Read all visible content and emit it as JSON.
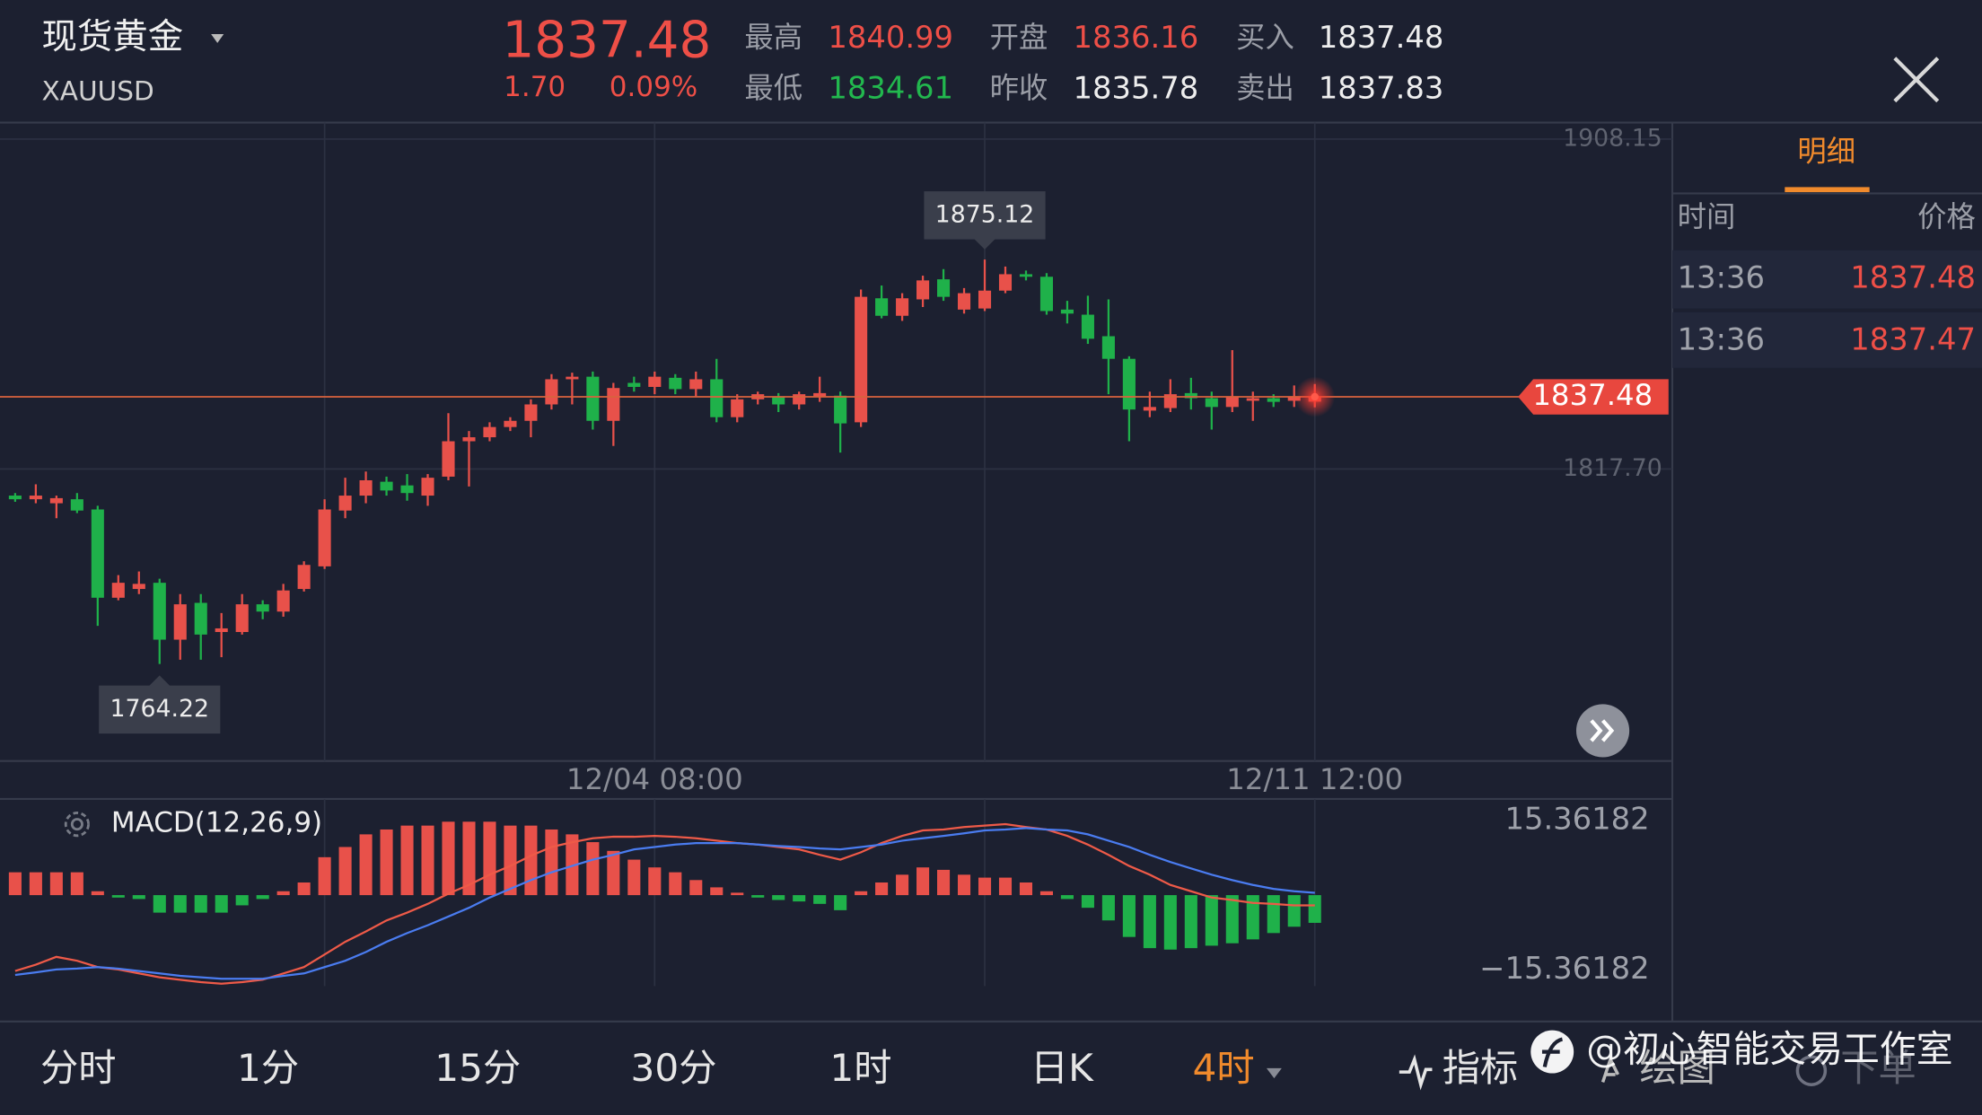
{
  "header": {
    "name": "现货黄金",
    "symbol": "XAUUSD",
    "price": "1837.48",
    "change": "1.70",
    "change_pct": "0.09%",
    "stats": [
      {
        "label": "最高",
        "value": "1840.99"
      },
      {
        "label": "最低",
        "value": "1834.61"
      },
      {
        "label": "开盘",
        "value": "1836.16"
      },
      {
        "label": "昨收",
        "value": "1835.78"
      },
      {
        "label": "买入",
        "value": "1837.48"
      },
      {
        "label": "卖出",
        "value": "1837.83"
      }
    ]
  },
  "chart_data": [
    {
      "type": "candlestick",
      "categories": [
        null,
        null,
        null,
        null,
        null,
        null,
        null,
        null,
        null,
        null,
        null,
        null,
        null,
        null,
        null,
        null,
        null,
        null,
        null,
        null,
        null,
        null,
        null,
        null,
        null,
        null,
        null,
        null,
        null,
        null,
        null,
        "12/04 08:00",
        null,
        null,
        null,
        null,
        null,
        null,
        null,
        null,
        null,
        null,
        null,
        null,
        null,
        null,
        null,
        null,
        null,
        null,
        null,
        null,
        null,
        null,
        null,
        null,
        null,
        null,
        null,
        null,
        null,
        null,
        null,
        "12/11 12:00"
      ],
      "open": [
        1810.4,
        1809.4,
        1808.3,
        1809.4,
        1806.6,
        1782.4,
        1784.8,
        1786.5,
        1770.9,
        1781.0,
        1773.0,
        1773.0,
        1780.6,
        1778.6,
        1784.8,
        1791.0,
        1806.3,
        1810.4,
        1814.2,
        1813.2,
        1810.4,
        1815.6,
        1825.3,
        1826.4,
        1829.2,
        1830.9,
        1835.4,
        1842.3,
        1843.0,
        1830.9,
        1841.3,
        1840.2,
        1842.7,
        1839.6,
        1842.3,
        1831.9,
        1836.8,
        1837.5,
        1835.4,
        1837.5,
        1837.8,
        1830.5,
        1864.5,
        1859.7,
        1864.2,
        1869.7,
        1861.4,
        1861.7,
        1866.6,
        1871.1,
        1870.4,
        1861.4,
        1860.0,
        1854.1,
        1847.9,
        1833.7,
        1834.4,
        1838.5,
        1837.1,
        1834.7,
        1836.4,
        1837.1,
        1836.4,
        1836.16
      ],
      "high": [
        1811.1,
        1813.5,
        1810.4,
        1811.1,
        1807.6,
        1788.6,
        1789.6,
        1787.6,
        1783.4,
        1783.4,
        1778.2,
        1783.4,
        1781.7,
        1786.2,
        1792.4,
        1809.4,
        1815.3,
        1817.0,
        1815.6,
        1816.3,
        1816.3,
        1833.0,
        1828.1,
        1830.5,
        1831.9,
        1836.8,
        1843.7,
        1844.1,
        1844.4,
        1841.3,
        1843.0,
        1844.4,
        1843.7,
        1844.4,
        1847.9,
        1838.2,
        1838.9,
        1838.5,
        1838.9,
        1843.0,
        1838.9,
        1866.9,
        1868.0,
        1865.9,
        1870.7,
        1872.5,
        1867.3,
        1875.12,
        1873.2,
        1872.1,
        1871.4,
        1863.8,
        1865.2,
        1864.2,
        1848.6,
        1838.9,
        1842.3,
        1842.7,
        1838.9,
        1850.3,
        1838.9,
        1838.2,
        1840.6,
        1840.99
      ],
      "low": [
        1808.7,
        1808.3,
        1804.2,
        1805.6,
        1774.7,
        1781.7,
        1783.4,
        1764.22,
        1765.4,
        1765.4,
        1766.1,
        1772.3,
        1776.5,
        1777.2,
        1784.1,
        1790.3,
        1804.2,
        1808.3,
        1810.4,
        1809.0,
        1807.6,
        1814.6,
        1812.9,
        1825.3,
        1828.1,
        1826.4,
        1834.0,
        1835.4,
        1828.5,
        1824.0,
        1838.9,
        1838.2,
        1838.2,
        1837.5,
        1830.5,
        1830.5,
        1835.4,
        1833.3,
        1834.0,
        1836.1,
        1822.2,
        1829.2,
        1859.0,
        1858.3,
        1862.1,
        1863.8,
        1860.3,
        1861.0,
        1865.9,
        1869.4,
        1860.0,
        1857.6,
        1852.0,
        1838.2,
        1825.3,
        1831.9,
        1833.3,
        1834.0,
        1828.5,
        1833.3,
        1830.9,
        1834.7,
        1834.7,
        1834.61
      ],
      "close": [
        1809.4,
        1810.4,
        1809.7,
        1806.3,
        1782.4,
        1786.5,
        1786.2,
        1770.9,
        1780.6,
        1772.3,
        1774.0,
        1780.6,
        1778.6,
        1784.4,
        1791.4,
        1806.6,
        1810.4,
        1814.6,
        1811.8,
        1811.1,
        1815.3,
        1825.3,
        1826.4,
        1829.2,
        1830.9,
        1835.4,
        1842.3,
        1843.0,
        1830.9,
        1839.9,
        1840.2,
        1843.0,
        1839.6,
        1842.3,
        1831.9,
        1836.8,
        1838.2,
        1835.4,
        1838.2,
        1838.5,
        1830.2,
        1864.9,
        1859.7,
        1864.5,
        1869.4,
        1864.9,
        1865.9,
        1866.6,
        1871.1,
        1870.4,
        1861.0,
        1860.3,
        1853.4,
        1847.9,
        1834.0,
        1834.7,
        1838.2,
        1837.1,
        1834.7,
        1837.5,
        1837.1,
        1836.1,
        1837.5,
        1837.48
      ],
      "up_color": "#e8514a",
      "down_color": "#1fb14a",
      "price_line_color": "#d9623e",
      "ylim": [
        1738.32,
        1911.62
      ],
      "yticks": [
        1908.15,
        {
          "value": 1817.7,
          "label": "1817.70"
        }
      ],
      "grid": true
    },
    {
      "type": "macd",
      "title": "MACD(12,26,9)",
      "histogram": [
        4.7,
        4.7,
        4.7,
        4.7,
        0.8,
        -0.5,
        -0.8,
        -3.6,
        -3.6,
        -3.6,
        -3.6,
        -2.1,
        -0.8,
        0.8,
        2.6,
        7.8,
        9.9,
        12.5,
        13.5,
        14.3,
        14.3,
        15.1,
        15.1,
        15.1,
        14.3,
        14.3,
        13.5,
        12.5,
        10.9,
        9.1,
        7.3,
        5.7,
        4.7,
        3.1,
        1.6,
        0.5,
        -0.5,
        -1.0,
        -1.3,
        -1.8,
        -3.1,
        0.8,
        2.6,
        4.2,
        5.7,
        5.2,
        4.2,
        3.6,
        3.6,
        2.6,
        0.8,
        -0.8,
        -2.6,
        -5.2,
        -8.6,
        -10.9,
        -11.2,
        -10.9,
        -10.4,
        -9.9,
        -9.1,
        -7.8,
        -6.5,
        -5.7
      ],
      "series": [
        {
          "color": "#ee5a48",
          "values": [
            -15.6,
            -14.3,
            -12.7,
            -13.5,
            -14.8,
            -15.3,
            -16.1,
            -16.9,
            -17.4,
            -17.9,
            -18.2,
            -17.9,
            -17.4,
            -16.1,
            -14.8,
            -12.2,
            -9.6,
            -7.5,
            -5.2,
            -3.6,
            -1.8,
            0.3,
            2.1,
            4.2,
            6.0,
            8.1,
            9.9,
            10.9,
            11.7,
            12.0,
            12.0,
            12.2,
            12.0,
            11.7,
            11.2,
            10.7,
            10.4,
            9.9,
            9.4,
            8.3,
            7.3,
            8.8,
            10.7,
            12.2,
            13.3,
            13.5,
            14.0,
            14.3,
            14.6,
            14.0,
            13.5,
            12.2,
            10.4,
            8.3,
            6.0,
            4.2,
            2.1,
            0.8,
            -0.5,
            -1.0,
            -1.6,
            -1.8,
            -2.1,
            -2.1
          ]
        },
        {
          "color": "#4a7cf0",
          "values": [
            -16.4,
            -15.9,
            -15.3,
            -15.1,
            -14.8,
            -15.1,
            -15.6,
            -16.1,
            -16.6,
            -16.9,
            -17.2,
            -17.2,
            -17.2,
            -16.6,
            -16.1,
            -14.8,
            -13.5,
            -11.7,
            -9.6,
            -7.8,
            -6.2,
            -4.4,
            -2.6,
            -0.5,
            1.3,
            3.1,
            4.7,
            6.0,
            7.3,
            8.3,
            9.4,
            9.9,
            10.4,
            10.7,
            10.7,
            10.7,
            10.4,
            10.1,
            9.9,
            9.6,
            9.4,
            9.9,
            10.4,
            11.2,
            11.7,
            12.2,
            12.7,
            13.3,
            13.5,
            13.8,
            13.5,
            13.3,
            12.5,
            11.2,
            9.9,
            8.3,
            6.8,
            5.5,
            4.2,
            3.1,
            2.1,
            1.3,
            0.8,
            0.5
          ]
        }
      ],
      "up_color": "#e8514a",
      "down_color": "#1fb14a",
      "ylim": [
        -18.7,
        19.0
      ],
      "yticks": [
        15.36182,
        {
          "value": -15.36182,
          "label": "−15.36182"
        }
      ]
    }
  ],
  "detail_panel": {
    "tab": "明细",
    "columns": [
      "时间",
      "价格"
    ],
    "rows": [
      [
        "13:36",
        "1837.48"
      ],
      [
        "13:36",
        "1837.47"
      ]
    ]
  },
  "toolbar": {
    "periods": [
      "分时",
      "1分",
      "15分",
      "30分",
      "1时",
      "日K",
      "4时"
    ],
    "active": 6,
    "tools": [
      "指标",
      "绘图",
      "下单"
    ]
  },
  "watermark": "@初心智能交易工作室"
}
